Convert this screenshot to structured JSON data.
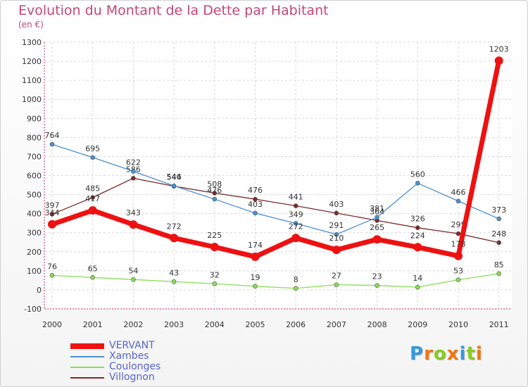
{
  "title": "Evolution du Montant de la Dette par Habitant",
  "subtitle": "(en €)",
  "logo_text": "Proxiti",
  "chart_data": {
    "type": "line",
    "x": [
      "2000",
      "2001",
      "2002",
      "2003",
      "2004",
      "2005",
      "2006",
      "2007",
      "2008",
      "2009",
      "2010",
      "2011"
    ],
    "ylim": [
      -100,
      1300
    ],
    "yticks": [
      -100,
      0,
      100,
      200,
      300,
      400,
      500,
      600,
      700,
      800,
      900,
      1000,
      1100,
      1200,
      1300
    ],
    "grid": true,
    "legend_position": "bottom-left",
    "series": [
      {
        "name": "VERVANT",
        "color": "#ee1111",
        "values": [
          344,
          417,
          343,
          272,
          225,
          174,
          272,
          210,
          265,
          224,
          178,
          1203
        ]
      },
      {
        "name": "Xambes",
        "color": "#4a90d0",
        "values": [
          764,
          695,
          622,
          546,
          476,
          403,
          349,
          291,
          381,
          560,
          466,
          373
        ]
      },
      {
        "name": "Coulonges",
        "color": "#88dd55",
        "values": [
          76,
          65,
          54,
          43,
          32,
          19,
          8,
          27,
          23,
          14,
          53,
          85
        ]
      },
      {
        "name": "Villognon",
        "color": "#7a2a2a",
        "values": [
          397,
          485,
          586,
          544,
          508,
          476,
          441,
          403,
          364,
          326,
          295,
          248
        ]
      }
    ]
  }
}
